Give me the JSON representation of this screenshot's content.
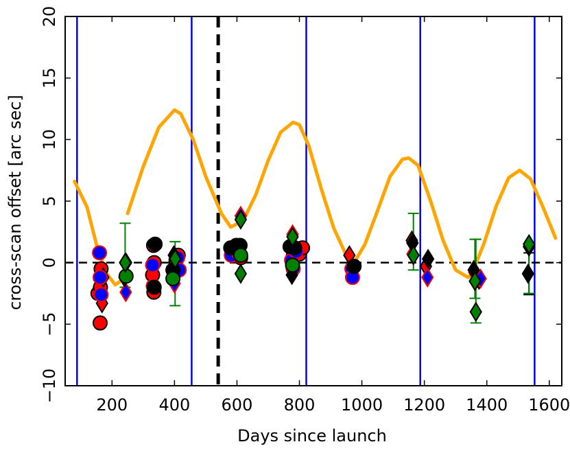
{
  "chart_data": {
    "type": "scatter",
    "title": "",
    "xlabel": "Days since launch",
    "ylabel": "cross-scan offset [arc sec]",
    "xlim": [
      50,
      1640
    ],
    "ylim": [
      -10,
      20
    ],
    "x_ticks": [
      200,
      400,
      600,
      800,
      1000,
      1200,
      1400,
      1600
    ],
    "x_tick_labels": [
      "200",
      "400",
      "600",
      "800",
      "1000",
      "1200",
      "1400",
      "1600"
    ],
    "y_ticks": [
      -10,
      -5,
      0,
      5,
      10,
      15,
      20
    ],
    "y_tick_labels": [
      "−10",
      "−5",
      "0",
      "5",
      "10",
      "15",
      "20"
    ],
    "reference_lines": {
      "zero_line": {
        "y": 0,
        "style": "dashed",
        "color": "#000000"
      },
      "epoch_line": {
        "x": 540,
        "style": "dashed",
        "color": "#000000"
      },
      "season_lines": {
        "x": [
          88,
          455,
          822,
          1187,
          1553
        ],
        "color": "#0000ee"
      }
    },
    "model_curve": {
      "name": "model",
      "color": "#ffa500",
      "segments": [
        {
          "x": [
            80,
            120,
            150,
            180,
            210,
            240
          ],
          "y": [
            6.6,
            4.5,
            1.5,
            -0.8,
            -1.8,
            -1.3
          ]
        },
        {
          "x": [
            250,
            300,
            350,
            400,
            420,
            460,
            500,
            550,
            580
          ],
          "y": [
            4.0,
            7.8,
            11.0,
            12.4,
            12.1,
            10.0,
            7.0,
            4.0,
            2.9
          ]
        },
        {
          "x": [
            580,
            620,
            660,
            700,
            740,
            780,
            800,
            830,
            870,
            910,
            950,
            975
          ],
          "y": [
            2.9,
            3.4,
            5.5,
            8.3,
            10.6,
            11.4,
            11.2,
            9.5,
            6.0,
            2.8,
            0.6,
            0.0
          ]
        },
        {
          "x": [
            975,
            1010,
            1050,
            1090,
            1130,
            1150,
            1180,
            1220,
            1260,
            1300,
            1340,
            1350
          ],
          "y": [
            0.0,
            1.5,
            4.2,
            7.0,
            8.4,
            8.5,
            7.9,
            5.0,
            1.8,
            -0.6,
            -1.2,
            -1.0
          ]
        },
        {
          "x": [
            1350,
            1390,
            1430,
            1470,
            1505,
            1540,
            1580,
            1620
          ],
          "y": [
            -1.0,
            1.5,
            4.6,
            6.9,
            7.5,
            6.8,
            4.5,
            2.0
          ]
        }
      ]
    },
    "series": [
      {
        "name": "red",
        "color": "#ff0000",
        "edge": "#000000",
        "circles": [
          [
            162,
            -4.9
          ],
          [
            155,
            -2.5
          ],
          [
            163,
            -2.0
          ],
          [
            165,
            -0.5
          ],
          [
            333,
            1.4
          ],
          [
            335,
            0.0
          ],
          [
            330,
            -1.0
          ],
          [
            334,
            -2.4
          ],
          [
            405,
            0.2
          ],
          [
            412,
            0.6
          ],
          [
            585,
            1.1
          ],
          [
            600,
            0.8
          ],
          [
            612,
            0.4
          ],
          [
            780,
            0.5
          ],
          [
            790,
            1.0
          ],
          [
            800,
            0.7
          ],
          [
            810,
            1.2
          ]
        ],
        "diamonds": [
          [
            168,
            -3.3
          ],
          [
            172,
            -1.2
          ],
          [
            245,
            0.0
          ],
          [
            400,
            -0.6
          ],
          [
            960,
            0.6
          ],
          [
            1160,
            1.8
          ],
          [
            1205,
            -0.3
          ],
          [
            1375,
            -1.4
          ],
          [
            1535,
            1.3
          ]
        ]
      },
      {
        "name": "blue",
        "color": "#0000ff",
        "edge": "#ff0000",
        "circles": [
          [
            160,
            0.8
          ],
          [
            162,
            -1.2
          ],
          [
            165,
            -2.6
          ],
          [
            330,
            -0.2
          ],
          [
            332,
            -1.9
          ],
          [
            410,
            0.4
          ],
          [
            415,
            -0.6
          ],
          [
            582,
            0.6
          ],
          [
            596,
            1.2
          ],
          [
            605,
            0.8
          ],
          [
            775,
            0.2
          ],
          [
            780,
            -0.5
          ],
          [
            790,
            0.9
          ],
          [
            968,
            -0.5
          ],
          [
            970,
            -1.2
          ]
        ],
        "diamonds": [
          [
            244,
            -2.4
          ],
          [
            400,
            -1.7
          ],
          [
            612,
            3.8
          ],
          [
            778,
            2.3
          ],
          [
            1162,
            0.7
          ],
          [
            1210,
            -1.2
          ],
          [
            1360,
            -0.8
          ],
          [
            1380,
            -1.3
          ]
        ]
      },
      {
        "name": "black",
        "color": "#000000",
        "edge": "#000000",
        "circles": [
          [
            338,
            1.5
          ],
          [
            580,
            1.2
          ],
          [
            598,
            1.4
          ],
          [
            610,
            1.4
          ],
          [
            770,
            1.3
          ],
          [
            785,
            1.2
          ],
          [
            975,
            -0.3
          ],
          [
            395,
            -0.6
          ],
          [
            335,
            -2.0
          ]
        ],
        "diamonds": [
          [
            240,
            -1.2
          ],
          [
            398,
            0.6
          ],
          [
            776,
            -1.0
          ],
          [
            1162,
            1.6
          ],
          [
            1212,
            0.3
          ],
          [
            1358,
            -0.6
          ],
          [
            1532,
            -0.9
          ]
        ],
        "errorbars": [
          [
            1535,
            -0.9,
            1.7
          ]
        ]
      },
      {
        "name": "green",
        "color": "#008000",
        "edge": "#000000",
        "circles": [
          [
            245,
            -1.1
          ],
          [
            395,
            -1.3
          ],
          [
            612,
            0.6
          ],
          [
            778,
            -0.2
          ]
        ],
        "diamonds": [
          [
            242,
            0.0
          ],
          [
            402,
            0.3
          ],
          [
            612,
            -0.9
          ],
          [
            612,
            3.5
          ],
          [
            778,
            2.1
          ],
          [
            1165,
            0.6
          ],
          [
            1365,
            -4.0
          ],
          [
            1362,
            -1.5
          ],
          [
            1535,
            1.5
          ]
        ],
        "errorbars": [
          [
            242,
            0.6,
            2.6
          ],
          [
            402,
            -0.9,
            2.6
          ],
          [
            1165,
            1.7,
            2.3
          ],
          [
            1365,
            -1.5,
            3.4
          ],
          [
            1362,
            -0.5,
            2.4
          ],
          [
            1535,
            -0.5,
            2.0
          ]
        ]
      }
    ]
  }
}
